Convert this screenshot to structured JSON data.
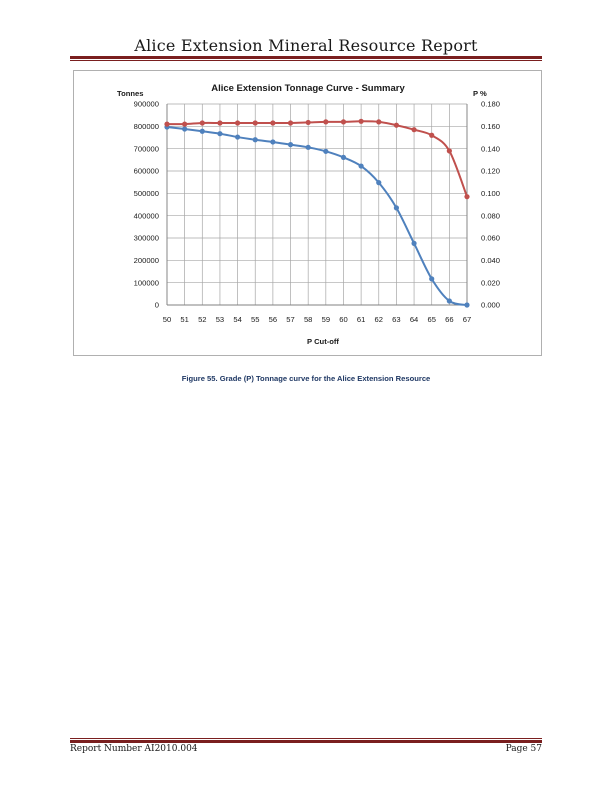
{
  "header": {
    "title": "Alice Extension Mineral Resource Report"
  },
  "figure": {
    "caption": "Figure 55. Grade (P) Tonnage curve for the Alice Extension Resource"
  },
  "footer": {
    "report_number": "Report Number AI2010.004",
    "page": "Page 57"
  },
  "colors": {
    "tonnes_series": "#4f81bd",
    "grade_series": "#c0504d",
    "rule": "#7a1f1f",
    "grid": "#a6a6a6"
  },
  "chart_data": {
    "type": "line",
    "title": "Alice Extension Tonnage Curve - Summary",
    "xlabel": "P Cut-off",
    "ylabel": "Tonnes",
    "y2label": "P %",
    "x": [
      50,
      51,
      52,
      53,
      54,
      55,
      56,
      57,
      58,
      59,
      60,
      61,
      62,
      63,
      64,
      65,
      66,
      67
    ],
    "ylim": [
      0,
      900000
    ],
    "y2lim": [
      0,
      0.18
    ],
    "yticks": [
      0,
      100000,
      200000,
      300000,
      400000,
      500000,
      600000,
      700000,
      800000,
      900000
    ],
    "y2ticks": [
      0.0,
      0.02,
      0.04,
      0.06,
      0.08,
      0.1,
      0.12,
      0.14,
      0.16,
      0.18
    ],
    "y2tick_labels": [
      "0.000",
      "0.020",
      "0.040",
      "0.060",
      "0.080",
      "0.100",
      "0.120",
      "0.140",
      "0.160",
      "0.180"
    ],
    "grid": true,
    "legend": "none",
    "series": [
      {
        "axis": "left",
        "values": [
          797000,
          788000,
          778000,
          767000,
          752000,
          740000,
          730000,
          718000,
          706000,
          688000,
          661000,
          622000,
          548000,
          435000,
          276000,
          117000,
          18000,
          0
        ]
      },
      {
        "axis": "right",
        "values": [
          0.162,
          0.162,
          0.163,
          0.163,
          0.163,
          0.163,
          0.163,
          0.163,
          0.1635,
          0.164,
          0.164,
          0.1645,
          0.164,
          0.161,
          0.157,
          0.152,
          0.138,
          0.097
        ]
      }
    ]
  }
}
